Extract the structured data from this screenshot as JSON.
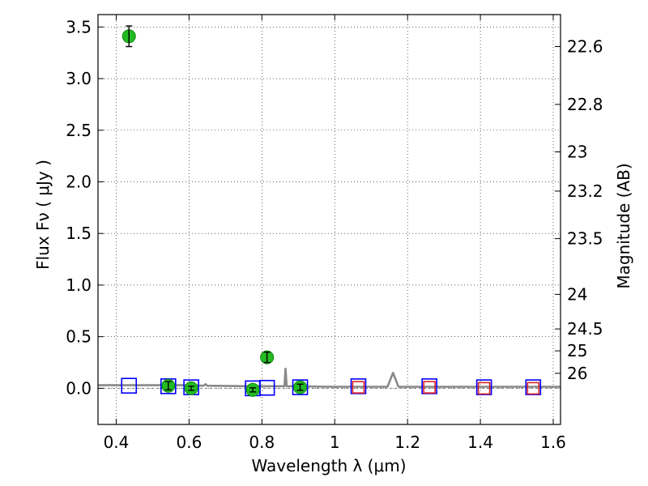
{
  "chart_data": {
    "type": "scatter",
    "xlabel": "Wavelength  λ (μm)",
    "ylabel": "Flux  Fν  ( μJy )",
    "y2label": "Magnitude (AB)",
    "xlim": [
      0.35,
      1.62
    ],
    "ylim": [
      -0.35,
      3.62
    ],
    "grid": true,
    "xticks": [
      {
        "value": 0.4,
        "label": "0.4"
      },
      {
        "value": 0.6,
        "label": "0.6"
      },
      {
        "value": 0.8,
        "label": "0.8"
      },
      {
        "value": 1.0,
        "label": "1"
      },
      {
        "value": 1.2,
        "label": "1.2"
      },
      {
        "value": 1.4,
        "label": "1.4"
      },
      {
        "value": 1.6,
        "label": "1.6"
      }
    ],
    "yticks": [
      {
        "value": 0.0,
        "label": "0.0"
      },
      {
        "value": 0.5,
        "label": "0.5"
      },
      {
        "value": 1.0,
        "label": "1.0"
      },
      {
        "value": 1.5,
        "label": "1.5"
      },
      {
        "value": 2.0,
        "label": "2.0"
      },
      {
        "value": 2.5,
        "label": "2.5"
      },
      {
        "value": 3.0,
        "label": "3.0"
      },
      {
        "value": 3.5,
        "label": "3.5"
      }
    ],
    "y2ticks": [
      {
        "label": "22.6",
        "flux": 3.31
      },
      {
        "label": "22.8",
        "flux": 2.75
      },
      {
        "label": "23",
        "flux": 2.29
      },
      {
        "label": "23.2",
        "flux": 1.91
      },
      {
        "label": "23.5",
        "flux": 1.45
      },
      {
        "label": "24",
        "flux": 0.91
      },
      {
        "label": "24.5",
        "flux": 0.575
      },
      {
        "label": "25",
        "flux": 0.363
      },
      {
        "label": "26",
        "flux": 0.145
      }
    ],
    "series": [
      {
        "marker": "circle",
        "color": "#22bb22",
        "points": [
          {
            "x": 0.435,
            "y": 3.41,
            "err": 0.1
          },
          {
            "x": 0.543,
            "y": 0.025,
            "err": 0.04
          },
          {
            "x": 0.606,
            "y": 0.0,
            "err": 0.02
          },
          {
            "x": 0.775,
            "y": -0.015,
            "err": 0.02
          },
          {
            "x": 0.814,
            "y": 0.3,
            "err": 0.05
          },
          {
            "x": 0.905,
            "y": 0.01,
            "err": 0.03
          }
        ]
      },
      {
        "marker": "open-square",
        "color": "#0000ff",
        "points": [
          {
            "x": 0.435,
            "y": 0.025
          },
          {
            "x": 0.543,
            "y": 0.02
          },
          {
            "x": 0.606,
            "y": 0.01
          },
          {
            "x": 0.775,
            "y": 0.0
          },
          {
            "x": 0.814,
            "y": 0.005
          },
          {
            "x": 0.905,
            "y": 0.01
          },
          {
            "x": 1.065,
            "y": 0.02
          },
          {
            "x": 1.26,
            "y": 0.02
          },
          {
            "x": 1.41,
            "y": 0.01
          },
          {
            "x": 1.545,
            "y": 0.01
          }
        ]
      },
      {
        "marker": "open-square",
        "color": "#dd2222",
        "points": [
          {
            "x": 1.065,
            "y": 0.01
          },
          {
            "x": 1.26,
            "y": 0.01
          },
          {
            "x": 1.41,
            "y": 0.0
          },
          {
            "x": 1.545,
            "y": 0.0
          }
        ]
      },
      {
        "marker": "line",
        "color": "#888888",
        "points": [
          {
            "x": 0.35,
            "y": 0.03
          },
          {
            "x": 0.5,
            "y": 0.03
          },
          {
            "x": 0.6,
            "y": 0.03
          },
          {
            "x": 0.64,
            "y": 0.025
          },
          {
            "x": 0.645,
            "y": 0.04
          },
          {
            "x": 0.65,
            "y": 0.025
          },
          {
            "x": 0.76,
            "y": 0.02
          },
          {
            "x": 0.862,
            "y": 0.02
          },
          {
            "x": 0.865,
            "y": 0.19
          },
          {
            "x": 0.868,
            "y": 0.02
          },
          {
            "x": 1.0,
            "y": 0.015
          },
          {
            "x": 1.145,
            "y": 0.015
          },
          {
            "x": 1.16,
            "y": 0.15
          },
          {
            "x": 1.175,
            "y": 0.015
          },
          {
            "x": 1.3,
            "y": 0.015
          },
          {
            "x": 1.62,
            "y": 0.015
          }
        ]
      }
    ]
  }
}
